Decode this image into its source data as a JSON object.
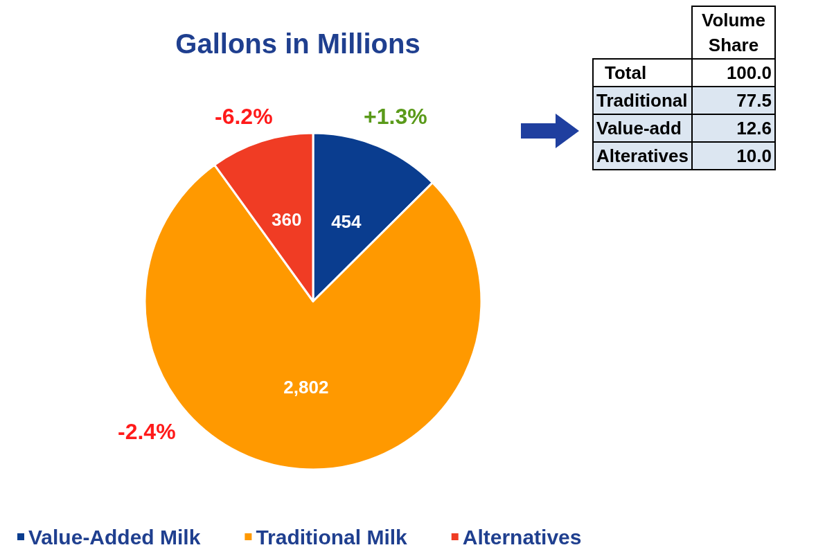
{
  "chart_data": [
    {
      "type": "pie",
      "title": "Gallons in Millions",
      "categories": [
        "Value-Added Milk",
        "Traditional Milk",
        "Alternatives"
      ],
      "values": [
        454,
        2802,
        360
      ],
      "colors": [
        "#0a3d8f",
        "#ff9900",
        "#f03c24"
      ],
      "value_labels": [
        "454",
        "2,802",
        "360"
      ],
      "annotations": [
        "+1.3%",
        "-2.4%",
        "-6.2%"
      ],
      "legend": "bottom"
    },
    {
      "type": "other",
      "title": "Volume Share",
      "categories": [
        "Total",
        "Traditional",
        "Value-add",
        "Alteratives"
      ],
      "values": [
        100.0,
        77.5,
        12.6,
        10.0
      ],
      "value_labels": [
        "100.0",
        "77.5",
        "12.6",
        "10.0"
      ]
    }
  ]
}
